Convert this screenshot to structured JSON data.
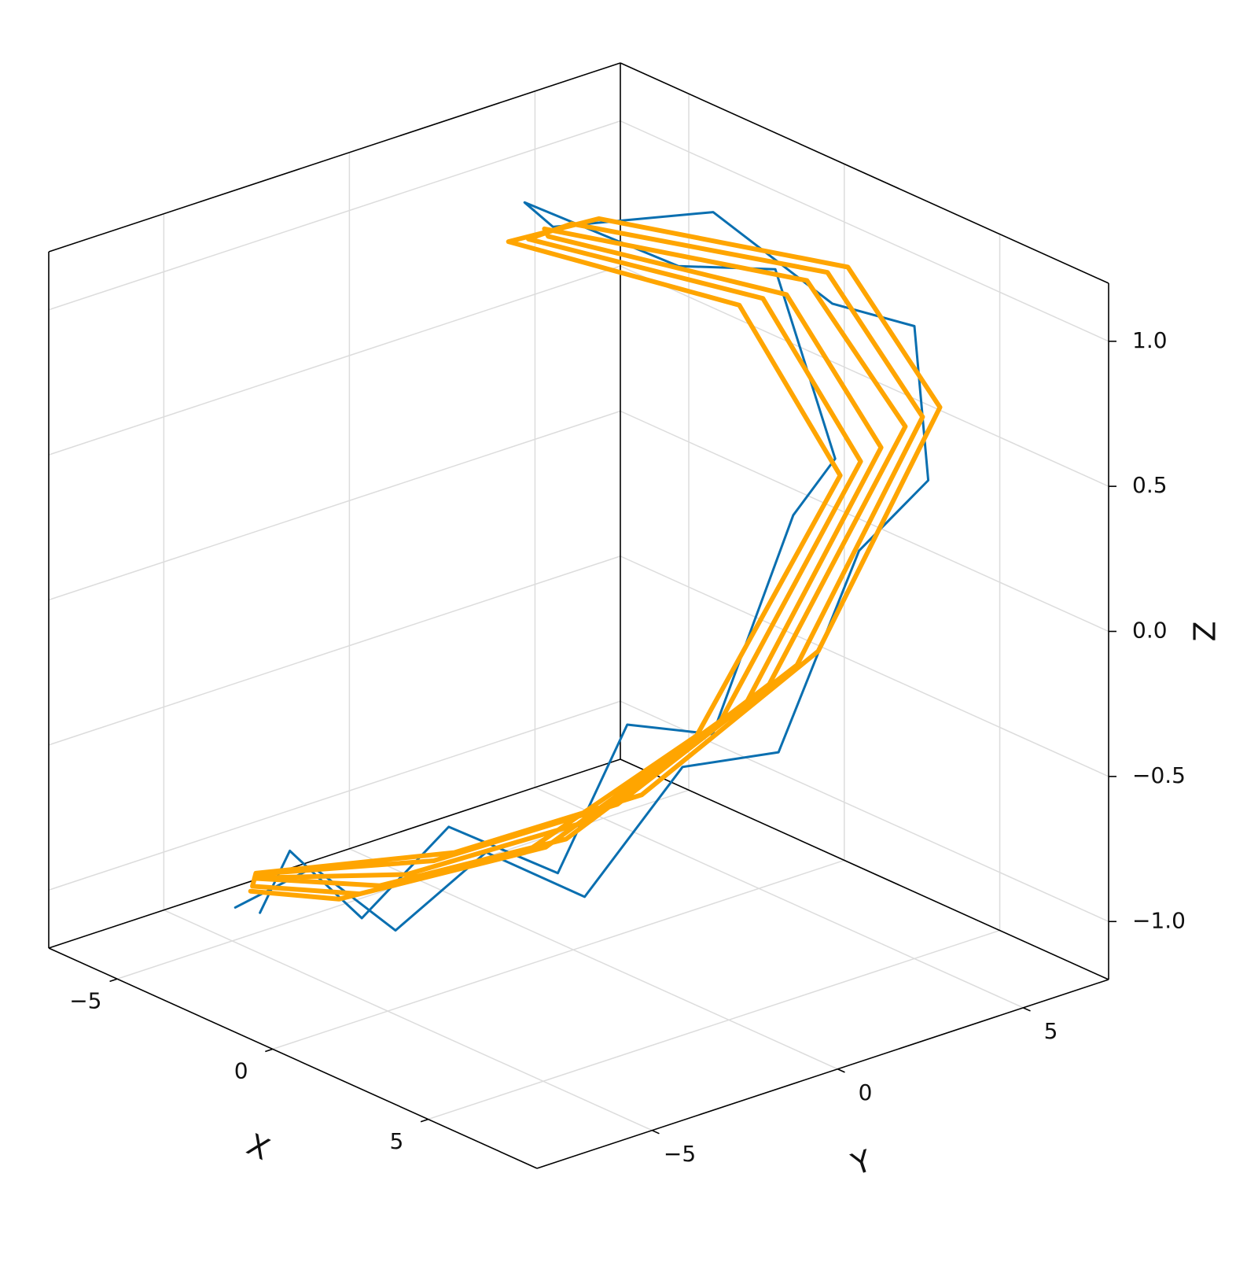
{
  "chart_data": {
    "type": "line3d",
    "x_label": "X",
    "y_label": "Y",
    "z_label": "Z",
    "xlim": [
      -7.2,
      8.5
    ],
    "ylim": [
      -8.1,
      7.3
    ],
    "zlim": [
      -1.2,
      1.2
    ],
    "xticks": [
      {
        "value": -5,
        "label": "−5"
      },
      0,
      5
    ],
    "yticks": [
      {
        "value": -5,
        "label": "−5"
      },
      0,
      5
    ],
    "zticks": [
      {
        "value": -1,
        "label": "−1.0"
      },
      {
        "value": -0.5,
        "label": "−0.5"
      },
      {
        "value": 0,
        "label": "0.0"
      },
      {
        "value": 0.5,
        "label": "0.5"
      },
      {
        "value": 1,
        "label": "1.0"
      }
    ],
    "grid": true,
    "series": [
      {
        "color": "#0a6fb0",
        "line_width": 3,
        "x": [
          -1.8,
          0.0,
          1.8,
          3.4,
          4.9,
          5.9,
          6.6,
          6.8,
          6.4,
          5.0,
          2.6,
          0.2,
          -2.8,
          -3.0,
          -0.2,
          2.2,
          4.6,
          5.4,
          5.2,
          4.6,
          3.8,
          2.2,
          0.6,
          -1.0,
          -2.2
        ],
        "y": [
          -7.6,
          -7.0,
          -6.3,
          -5.2,
          -3.8,
          -2.0,
          0.0,
          2.0,
          4.2,
          5.0,
          4.8,
          3.6,
          1.8,
          1.2,
          3.0,
          3.6,
          3.2,
          1.4,
          -0.6,
          -2.4,
          -3.6,
          -5.2,
          -6.2,
          -6.8,
          -6.6
        ],
        "z": [
          -0.82,
          -0.62,
          -0.78,
          -0.48,
          -0.62,
          -0.2,
          -0.2,
          0.42,
          0.55,
          0.98,
          0.95,
          1.2,
          1.08,
          1.18,
          1.02,
          1.1,
          0.58,
          0.5,
          -0.18,
          -0.1,
          -0.6,
          -0.45,
          -0.8,
          -0.62,
          -0.9
        ]
      },
      {
        "color": "#ffa500",
        "line_width": 6,
        "x": [
          -1.5,
          1.8,
          4.7,
          6.3,
          5.9,
          2.5,
          -2.6,
          -2.0,
          2.2,
          5.6,
          6.0,
          4.3,
          1.3,
          -1.9,
          -1.2,
          2.2,
          5.0,
          6.6,
          6.1,
          2.8,
          -2.2,
          -2.4,
          1.8,
          5.3,
          5.7,
          4.0,
          1.0,
          -2.2,
          -0.9,
          2.5,
          5.3,
          6.8,
          6.3,
          3.1,
          -1.8,
          -2.8,
          1.4,
          5.0,
          5.4,
          3.7,
          0.7,
          -2.5
        ],
        "y": [
          -7.2,
          -6.0,
          -3.5,
          0.0,
          4.0,
          4.2,
          1.4,
          1.0,
          3.9,
          3.6,
          -0.4,
          -3.8,
          -6.3,
          -7.0,
          -7.5,
          -5.6,
          -3.0,
          0.5,
          4.3,
          4.5,
          1.8,
          0.8,
          3.6,
          3.3,
          -0.8,
          -4.1,
          -6.6,
          -6.8,
          -7.8,
          -5.3,
          -2.6,
          0.9,
          4.6,
          4.8,
          2.2,
          0.6,
          3.3,
          3.0,
          -1.2,
          -4.4,
          -6.9,
          -6.6
        ],
        "z": [
          -0.72,
          -0.6,
          -0.38,
          0.02,
          0.72,
          1.05,
          1.1,
          1.12,
          1.0,
          0.65,
          -0.05,
          -0.45,
          -0.65,
          -0.75,
          -0.68,
          -0.55,
          -0.33,
          0.08,
          0.75,
          1.08,
          1.12,
          1.1,
          0.98,
          0.6,
          -0.1,
          -0.48,
          -0.68,
          -0.8,
          -0.65,
          -0.52,
          -0.3,
          0.12,
          0.78,
          1.1,
          1.14,
          1.08,
          0.95,
          0.55,
          -0.15,
          -0.5,
          -0.7,
          -0.84
        ]
      }
    ]
  }
}
